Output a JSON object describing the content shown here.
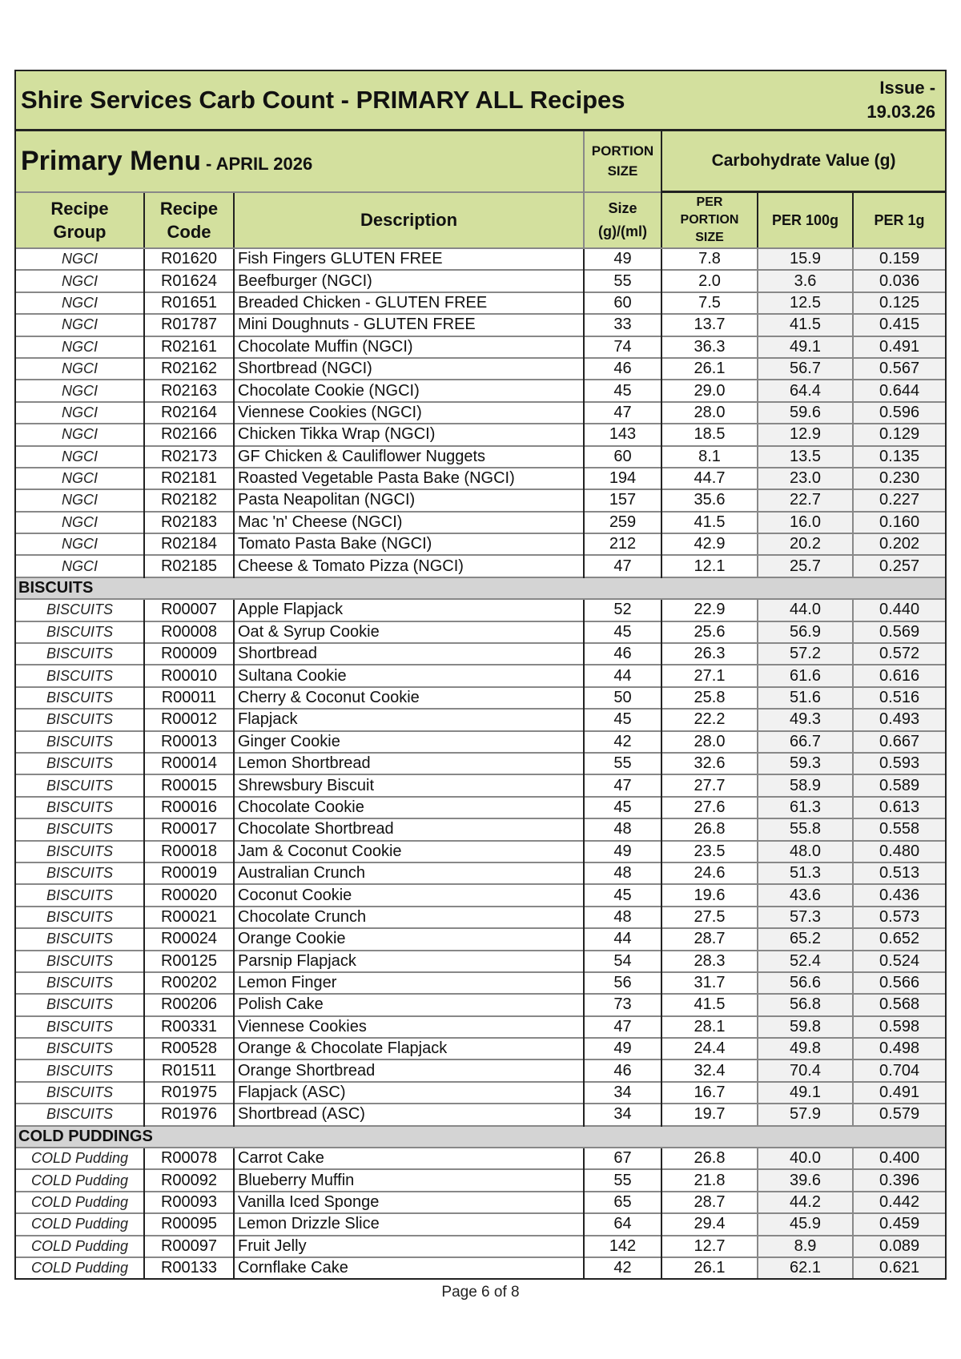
{
  "header": {
    "title": "Shire Services Carb Count - PRIMARY ALL Recipes",
    "issue_line1": "Issue -",
    "issue_line2": "19.03.26",
    "menu_title": "Primary Menu",
    "menu_subtitle": " - APRIL 2026",
    "portion_size_line1": "PORTION",
    "portion_size_line2": "SIZE",
    "carb_value": "Carbohydrate Value (g)"
  },
  "columns": {
    "group_1": "Recipe",
    "group_2": "Group",
    "code_1": "Recipe",
    "code_2": "Code",
    "description": "Description",
    "size_1": "Size",
    "size_2": "(g)/(ml)",
    "portion_1": "PER",
    "portion_2": "PORTION",
    "portion_3": "SIZE",
    "per100": "PER 100g",
    "per1": "PER 1g"
  },
  "colors": {
    "header_green": "#d3e09e",
    "section_grey": "#d4d4d4"
  },
  "sections": [
    {
      "name": "",
      "rows": [
        [
          "NGCI",
          "R01620",
          "Fish Fingers GLUTEN FREE",
          "49",
          "7.8",
          "15.9",
          "0.159"
        ],
        [
          "NGCI",
          "R01624",
          "Beefburger (NGCI)",
          "55",
          "2.0",
          "3.6",
          "0.036"
        ],
        [
          "NGCI",
          "R01651",
          "Breaded Chicken - GLUTEN FREE",
          "60",
          "7.5",
          "12.5",
          "0.125"
        ],
        [
          "NGCI",
          "R01787",
          "Mini Doughnuts - GLUTEN FREE",
          "33",
          "13.7",
          "41.5",
          "0.415"
        ],
        [
          "NGCI",
          "R02161",
          "Chocolate Muffin (NGCI)",
          "74",
          "36.3",
          "49.1",
          "0.491"
        ],
        [
          "NGCI",
          "R02162",
          "Shortbread (NGCI)",
          "46",
          "26.1",
          "56.7",
          "0.567"
        ],
        [
          "NGCI",
          "R02163",
          "Chocolate Cookie (NGCI)",
          "45",
          "29.0",
          "64.4",
          "0.644"
        ],
        [
          "NGCI",
          "R02164",
          "Viennese Cookies (NGCI)",
          "47",
          "28.0",
          "59.6",
          "0.596"
        ],
        [
          "NGCI",
          "R02166",
          "Chicken Tikka Wrap (NGCI)",
          "143",
          "18.5",
          "12.9",
          "0.129"
        ],
        [
          "NGCI",
          "R02173",
          "GF Chicken & Cauliflower Nuggets",
          "60",
          "8.1",
          "13.5",
          "0.135"
        ],
        [
          "NGCI",
          "R02181",
          "Roasted Vegetable Pasta Bake (NGCI)",
          "194",
          "44.7",
          "23.0",
          "0.230"
        ],
        [
          "NGCI",
          "R02182",
          "Pasta Neapolitan (NGCI)",
          "157",
          "35.6",
          "22.7",
          "0.227"
        ],
        [
          "NGCI",
          "R02183",
          "Mac 'n' Cheese (NGCI)",
          "259",
          "41.5",
          "16.0",
          "0.160"
        ],
        [
          "NGCI",
          "R02184",
          "Tomato Pasta Bake (NGCI)",
          "212",
          "42.9",
          "20.2",
          "0.202"
        ],
        [
          "NGCI",
          "R02185",
          "Cheese & Tomato Pizza (NGCI)",
          "47",
          "12.1",
          "25.7",
          "0.257"
        ]
      ]
    },
    {
      "name": "BISCUITS",
      "rows": [
        [
          "BISCUITS",
          "R00007",
          "Apple Flapjack",
          "52",
          "22.9",
          "44.0",
          "0.440"
        ],
        [
          "BISCUITS",
          "R00008",
          "Oat & Syrup Cookie",
          "45",
          "25.6",
          "56.9",
          "0.569"
        ],
        [
          "BISCUITS",
          "R00009",
          "Shortbread",
          "46",
          "26.3",
          "57.2",
          "0.572"
        ],
        [
          "BISCUITS",
          "R00010",
          "Sultana Cookie",
          "44",
          "27.1",
          "61.6",
          "0.616"
        ],
        [
          "BISCUITS",
          "R00011",
          "Cherry & Coconut Cookie",
          "50",
          "25.8",
          "51.6",
          "0.516"
        ],
        [
          "BISCUITS",
          "R00012",
          "Flapjack",
          "45",
          "22.2",
          "49.3",
          "0.493"
        ],
        [
          "BISCUITS",
          "R00013",
          "Ginger Cookie",
          "42",
          "28.0",
          "66.7",
          "0.667"
        ],
        [
          "BISCUITS",
          "R00014",
          "Lemon Shortbread",
          "55",
          "32.6",
          "59.3",
          "0.593"
        ],
        [
          "BISCUITS",
          "R00015",
          "Shrewsbury Biscuit",
          "47",
          "27.7",
          "58.9",
          "0.589"
        ],
        [
          "BISCUITS",
          "R00016",
          "Chocolate Cookie",
          "45",
          "27.6",
          "61.3",
          "0.613"
        ],
        [
          "BISCUITS",
          "R00017",
          "Chocolate Shortbread",
          "48",
          "26.8",
          "55.8",
          "0.558"
        ],
        [
          "BISCUITS",
          "R00018",
          "Jam & Coconut Cookie",
          "49",
          "23.5",
          "48.0",
          "0.480"
        ],
        [
          "BISCUITS",
          "R00019",
          "Australian Crunch",
          "48",
          "24.6",
          "51.3",
          "0.513"
        ],
        [
          "BISCUITS",
          "R00020",
          "Coconut Cookie",
          "45",
          "19.6",
          "43.6",
          "0.436"
        ],
        [
          "BISCUITS",
          "R00021",
          "Chocolate Crunch",
          "48",
          "27.5",
          "57.3",
          "0.573"
        ],
        [
          "BISCUITS",
          "R00024",
          "Orange Cookie",
          "44",
          "28.7",
          "65.2",
          "0.652"
        ],
        [
          "BISCUITS",
          "R00125",
          "Parsnip Flapjack",
          "54",
          "28.3",
          "52.4",
          "0.524"
        ],
        [
          "BISCUITS",
          "R00202",
          "Lemon Finger",
          "56",
          "31.7",
          "56.6",
          "0.566"
        ],
        [
          "BISCUITS",
          "R00206",
          "Polish Cake",
          "73",
          "41.5",
          "56.8",
          "0.568"
        ],
        [
          "BISCUITS",
          "R00331",
          "Viennese Cookies",
          "47",
          "28.1",
          "59.8",
          "0.598"
        ],
        [
          "BISCUITS",
          "R00528",
          "Orange & Chocolate Flapjack",
          "49",
          "24.4",
          "49.8",
          "0.498"
        ],
        [
          "BISCUITS",
          "R01511",
          "Orange Shortbread",
          "46",
          "32.4",
          "70.4",
          "0.704"
        ],
        [
          "BISCUITS",
          "R01975",
          "Flapjack (ASC)",
          "34",
          "16.7",
          "49.1",
          "0.491"
        ],
        [
          "BISCUITS",
          "R01976",
          "Shortbread (ASC)",
          "34",
          "19.7",
          "57.9",
          "0.579"
        ]
      ]
    },
    {
      "name": "COLD PUDDINGS",
      "rows": [
        [
          "COLD Pudding",
          "R00078",
          "Carrot Cake",
          "67",
          "26.8",
          "40.0",
          "0.400"
        ],
        [
          "COLD Pudding",
          "R00092",
          "Blueberry Muffin",
          "55",
          "21.8",
          "39.6",
          "0.396"
        ],
        [
          "COLD Pudding",
          "R00093",
          "Vanilla Iced Sponge",
          "65",
          "28.7",
          "44.2",
          "0.442"
        ],
        [
          "COLD Pudding",
          "R00095",
          "Lemon Drizzle Slice",
          "64",
          "29.4",
          "45.9",
          "0.459"
        ],
        [
          "COLD Pudding",
          "R00097",
          "Fruit Jelly",
          "142",
          "12.7",
          "8.9",
          "0.089"
        ],
        [
          "COLD Pudding",
          "R00133",
          "Cornflake Cake",
          "42",
          "26.1",
          "62.1",
          "0.621"
        ]
      ]
    }
  ],
  "footer": {
    "page": "Page 6 of 8"
  }
}
